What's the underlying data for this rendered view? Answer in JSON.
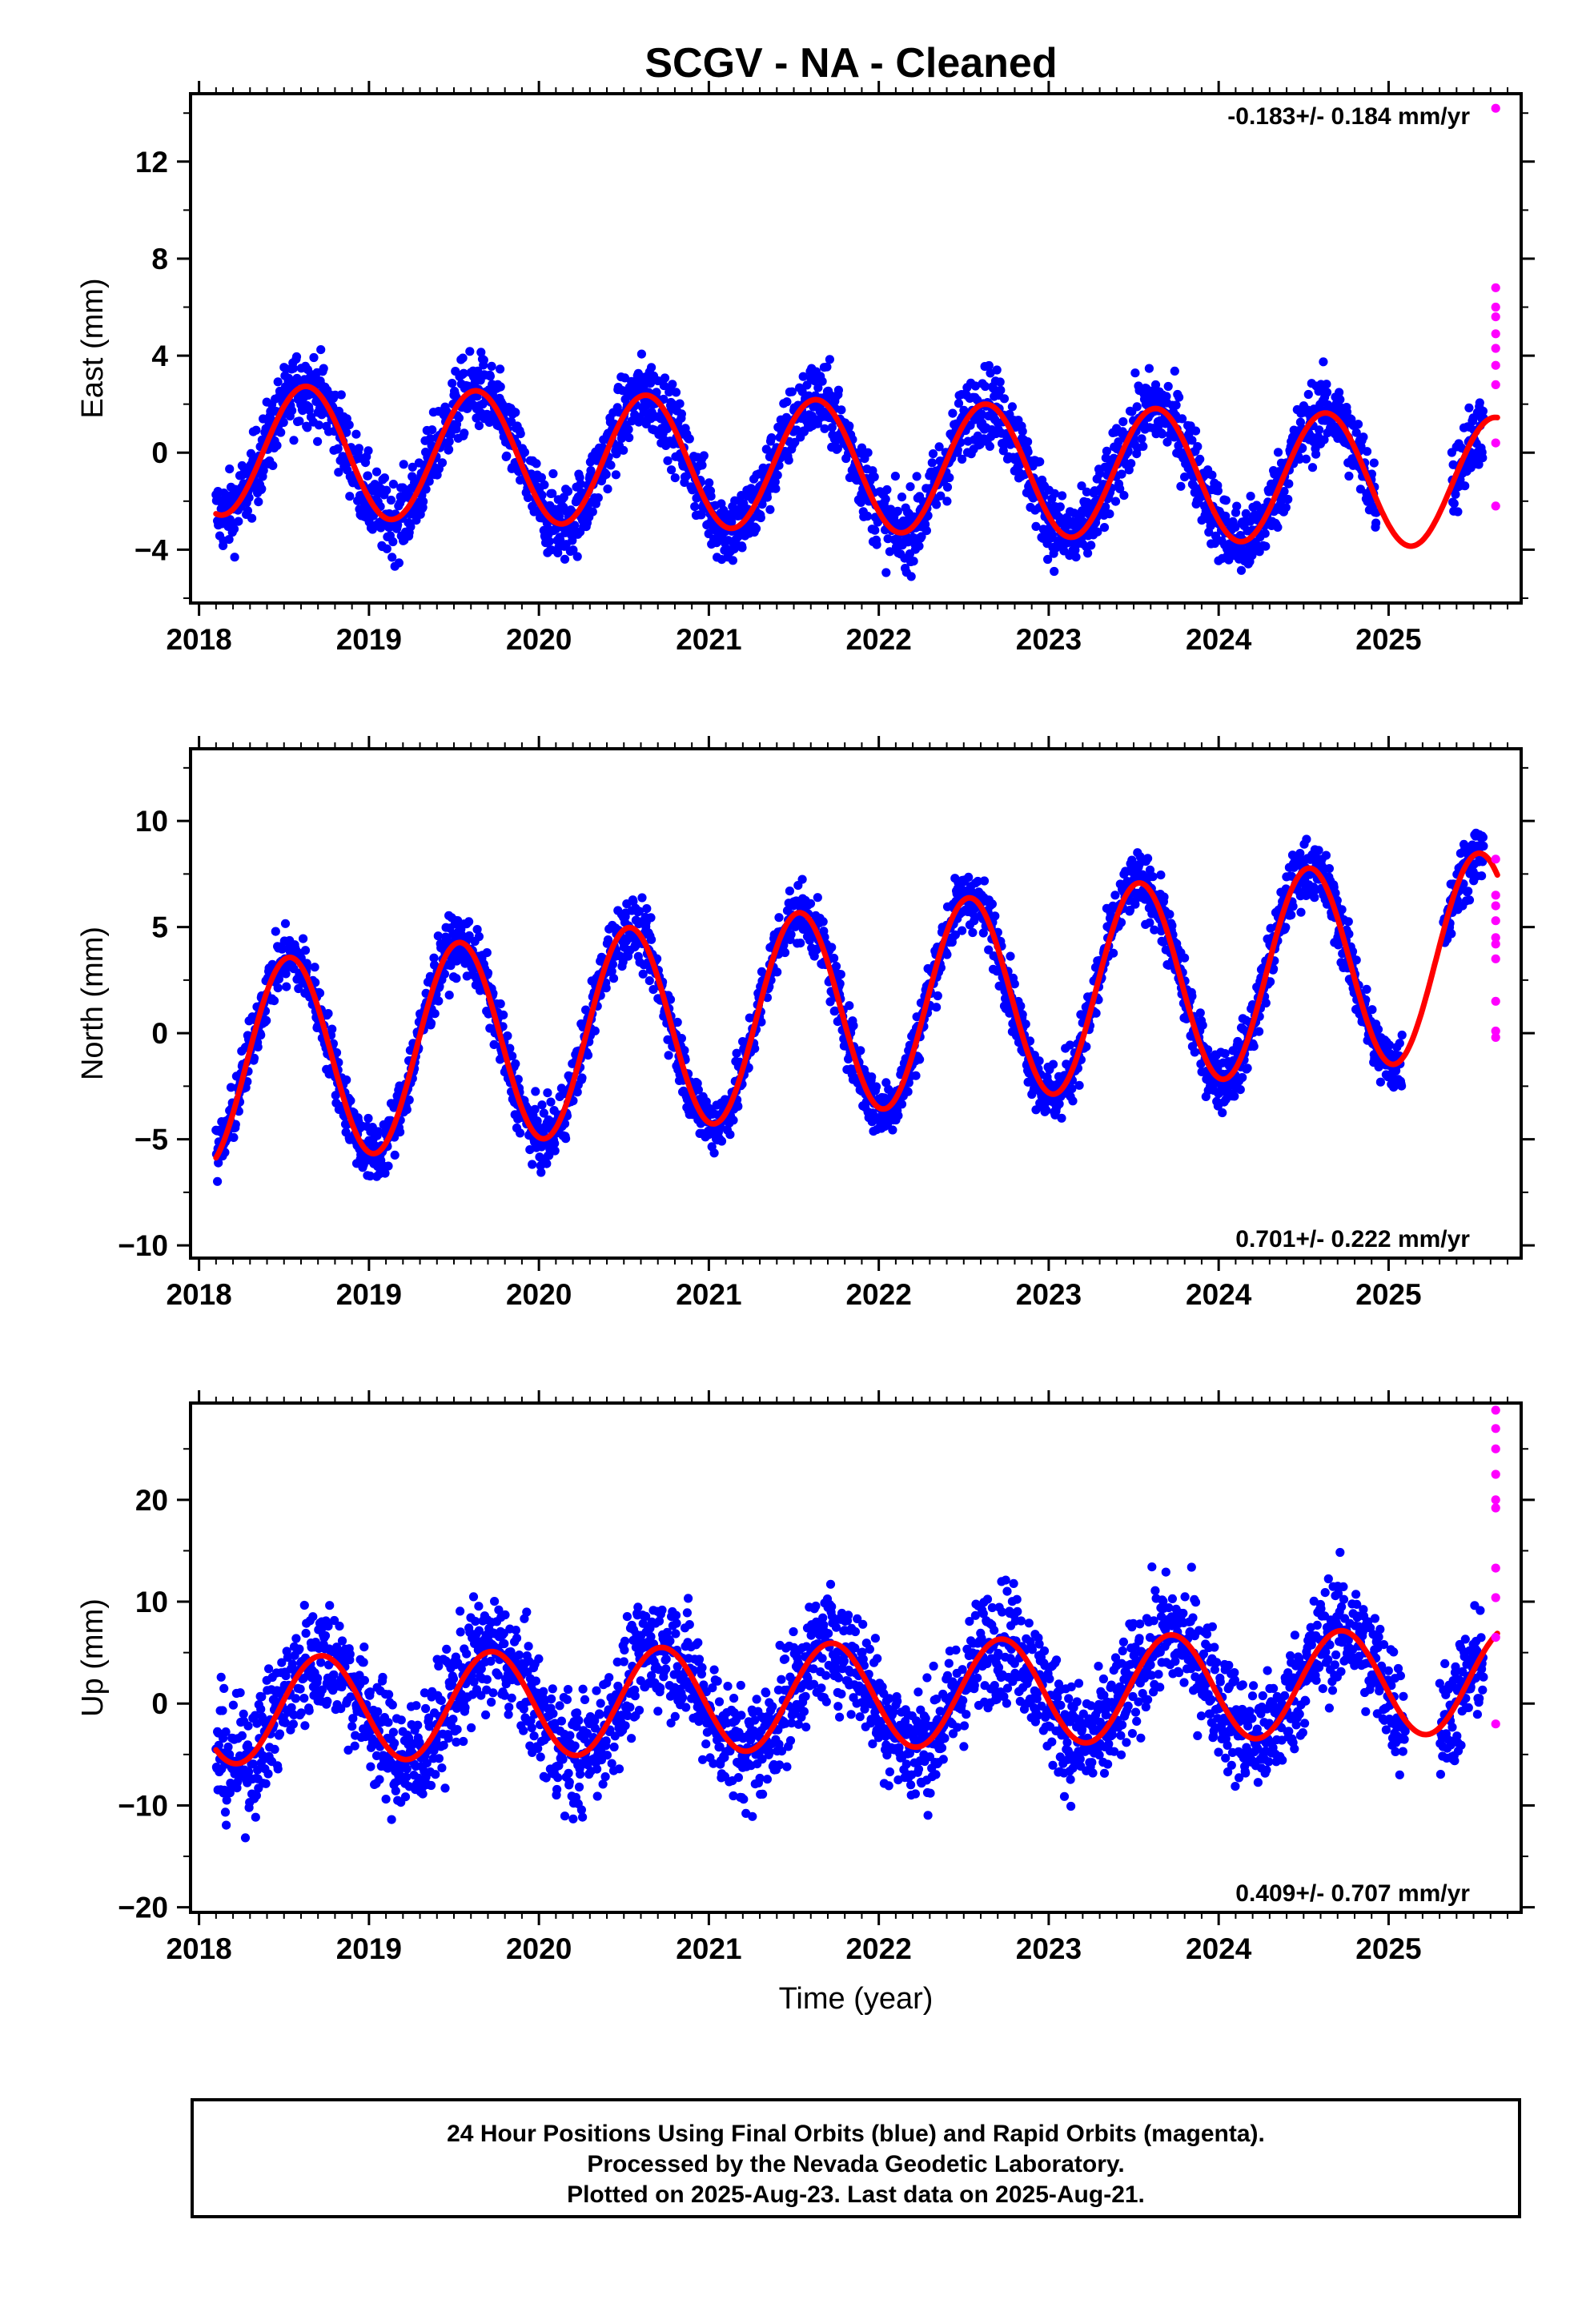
{
  "page_title": "SCGV  - NA - Cleaned",
  "footer": {
    "line1": "24 Hour Positions Using Final Orbits (blue) and Rapid Orbits (magenta).",
    "line2": "Processed by the Nevada Geodetic Laboratory.",
    "line3": "Plotted on 2025-Aug-23. Last data on 2025-Aug-21."
  },
  "colors": {
    "final_points": "#0000ff",
    "rapid_points": "#ff00ff",
    "model_line": "#ff0000"
  },
  "chart_data": [
    {
      "type": "scatter",
      "component": "east",
      "ylabel": "East (mm)",
      "xlabel": "",
      "rate_text": "-0.183+/- 0.184 mm/yr",
      "rate_position": "top-right",
      "xlim": [
        2017.95,
        2025.78
      ],
      "ylim": [
        -6.2,
        14.8
      ],
      "xticks": [
        2018,
        2019,
        2020,
        2021,
        2022,
        2023,
        2024,
        2025
      ],
      "xtick_labels": [
        "2018",
        "2019",
        "2020",
        "2021",
        "2022",
        "2023",
        "2024",
        "2025"
      ],
      "yticks": [
        -4,
        0,
        4,
        8,
        12
      ],
      "ytick_labels": [
        "−4",
        "0",
        "4",
        "8",
        "12"
      ],
      "model": {
        "start": 2018.1,
        "end": 2025.64,
        "offset": 0.15,
        "rate": -0.183,
        "amp": 2.7,
        "peak": 2018.63
      },
      "scatter_noise": 1.1,
      "gaps": [
        [
          2024.93,
          2025.37
        ]
      ],
      "rapid_values": [
        14.2,
        6.8,
        6.0,
        5.6,
        4.9,
        4.3,
        3.6,
        2.8,
        0.4,
        -2.2
      ]
    },
    {
      "type": "scatter",
      "component": "north",
      "ylabel": "North (mm)",
      "xlabel": "",
      "rate_text": "0.701+/- 0.222 mm/yr",
      "rate_position": "bottom-right",
      "xlim": [
        2017.95,
        2025.78
      ],
      "ylim": [
        -10.6,
        13.4
      ],
      "xticks": [
        2018,
        2019,
        2020,
        2021,
        2022,
        2023,
        2024,
        2025
      ],
      "xtick_labels": [
        "2018",
        "2019",
        "2020",
        "2021",
        "2022",
        "2023",
        "2024",
        "2025"
      ],
      "yticks": [
        -10,
        -5,
        0,
        5,
        10
      ],
      "ytick_labels": [
        "−10",
        "−5",
        "0",
        "5",
        "10"
      ],
      "model": {
        "start": 2018.1,
        "end": 2025.64,
        "offset": -1.6,
        "rate": 0.701,
        "amp": 4.8,
        "peak": 2018.53
      },
      "scatter_noise": 1.0,
      "gaps": [
        [
          2025.08,
          2025.32
        ]
      ],
      "rapid_values": [
        8.2,
        6.5,
        6.0,
        5.3,
        4.5,
        4.2,
        3.5,
        1.5,
        0.1,
        -0.2
      ]
    },
    {
      "type": "scatter",
      "component": "up",
      "ylabel": "Up (mm)",
      "xlabel": "Time (year)",
      "rate_text": "0.409+/- 0.707 mm/yr",
      "rate_position": "bottom-right",
      "xlim": [
        2017.95,
        2025.78
      ],
      "ylim": [
        -20.5,
        29.5
      ],
      "xticks": [
        2018,
        2019,
        2020,
        2021,
        2022,
        2023,
        2024,
        2025
      ],
      "xtick_labels": [
        "2018",
        "2019",
        "2020",
        "2021",
        "2022",
        "2023",
        "2024",
        "2025"
      ],
      "yticks": [
        -20,
        -10,
        0,
        10,
        20
      ],
      "ytick_labels": [
        "−20",
        "−10",
        "0",
        "10",
        "20"
      ],
      "model": {
        "start": 2018.1,
        "end": 2025.64,
        "offset": -0.8,
        "rate": 0.409,
        "amp": 5.2,
        "peak": 2018.72
      },
      "scatter_noise": 4.0,
      "gaps": [
        [
          2025.1,
          2025.3
        ]
      ],
      "rapid_values": [
        28.8,
        27.0,
        25.0,
        22.5,
        20.0,
        19.2,
        13.3,
        10.4,
        6.5,
        -2.0
      ]
    }
  ]
}
